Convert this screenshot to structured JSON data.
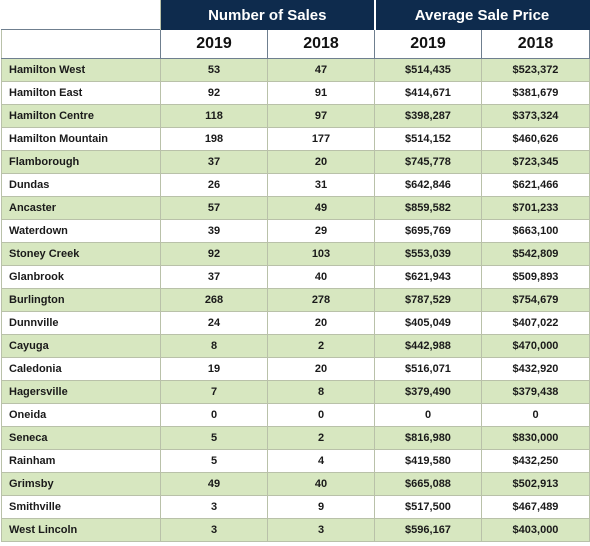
{
  "chart_data": {
    "type": "table",
    "column_groups": [
      {
        "label": "Number of Sales",
        "years": [
          "2019",
          "2018"
        ]
      },
      {
        "label": "Average Sale Price",
        "years": [
          "2019",
          "2018"
        ]
      }
    ],
    "rows": [
      {
        "area": "Hamilton West",
        "sales_2019": "53",
        "sales_2018": "47",
        "price_2019": "$514,435",
        "price_2018": "$523,372"
      },
      {
        "area": "Hamilton East",
        "sales_2019": "92",
        "sales_2018": "91",
        "price_2019": "$414,671",
        "price_2018": "$381,679"
      },
      {
        "area": "Hamilton Centre",
        "sales_2019": "118",
        "sales_2018": "97",
        "price_2019": "$398,287",
        "price_2018": "$373,324"
      },
      {
        "area": "Hamilton Mountain",
        "sales_2019": "198",
        "sales_2018": "177",
        "price_2019": "$514,152",
        "price_2018": "$460,626"
      },
      {
        "area": "Flamborough",
        "sales_2019": "37",
        "sales_2018": "20",
        "price_2019": "$745,778",
        "price_2018": "$723,345"
      },
      {
        "area": "Dundas",
        "sales_2019": "26",
        "sales_2018": "31",
        "price_2019": "$642,846",
        "price_2018": "$621,466"
      },
      {
        "area": "Ancaster",
        "sales_2019": "57",
        "sales_2018": "49",
        "price_2019": "$859,582",
        "price_2018": "$701,233"
      },
      {
        "area": "Waterdown",
        "sales_2019": "39",
        "sales_2018": "29",
        "price_2019": "$695,769",
        "price_2018": "$663,100"
      },
      {
        "area": "Stoney Creek",
        "sales_2019": "92",
        "sales_2018": "103",
        "price_2019": "$553,039",
        "price_2018": "$542,809"
      },
      {
        "area": "Glanbrook",
        "sales_2019": "37",
        "sales_2018": "40",
        "price_2019": "$621,943",
        "price_2018": "$509,893"
      },
      {
        "area": "Burlington",
        "sales_2019": "268",
        "sales_2018": "278",
        "price_2019": "$787,529",
        "price_2018": "$754,679"
      },
      {
        "area": "Dunnville",
        "sales_2019": "24",
        "sales_2018": "20",
        "price_2019": "$405,049",
        "price_2018": "$407,022"
      },
      {
        "area": "Cayuga",
        "sales_2019": "8",
        "sales_2018": "2",
        "price_2019": "$442,988",
        "price_2018": "$470,000"
      },
      {
        "area": "Caledonia",
        "sales_2019": "19",
        "sales_2018": "20",
        "price_2019": "$516,071",
        "price_2018": "$432,920"
      },
      {
        "area": "Hagersville",
        "sales_2019": "7",
        "sales_2018": "8",
        "price_2019": "$379,490",
        "price_2018": "$379,438"
      },
      {
        "area": "Oneida",
        "sales_2019": "0",
        "sales_2018": "0",
        "price_2019": "0",
        "price_2018": "0"
      },
      {
        "area": "Seneca",
        "sales_2019": "5",
        "sales_2018": "2",
        "price_2019": "$816,980",
        "price_2018": "$830,000"
      },
      {
        "area": "Rainham",
        "sales_2019": "5",
        "sales_2018": "4",
        "price_2019": "$419,580",
        "price_2018": "$432,250"
      },
      {
        "area": "Grimsby",
        "sales_2019": "49",
        "sales_2018": "40",
        "price_2019": "$665,088",
        "price_2018": "$502,913"
      },
      {
        "area": "Smithville",
        "sales_2019": "3",
        "sales_2018": "9",
        "price_2019": "$517,500",
        "price_2018": "$467,489"
      },
      {
        "area": "West Lincoln",
        "sales_2019": "3",
        "sales_2018": "3",
        "price_2019": "$596,167",
        "price_2018": "$403,000"
      }
    ]
  },
  "colors": {
    "header_navy": "#0e2b4d",
    "row_band_green": "#d7e7c0",
    "row_band_white": "#ffffff",
    "grid_line": "#b9c1a9"
  }
}
